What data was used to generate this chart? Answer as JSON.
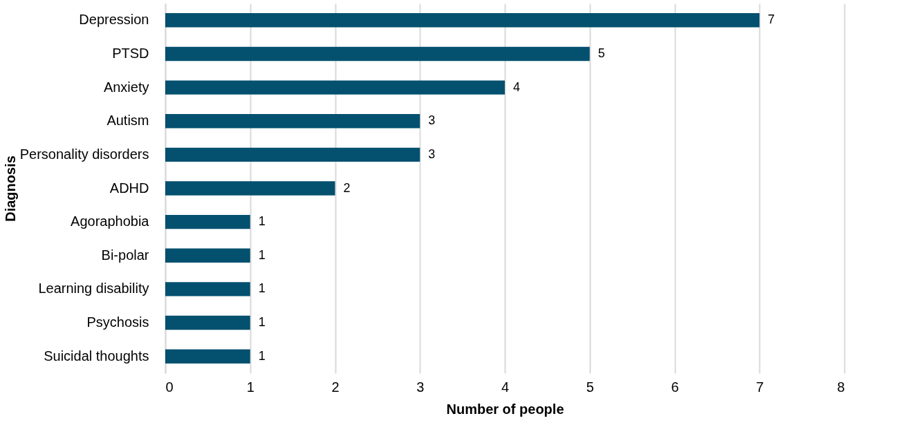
{
  "chart_data": {
    "type": "bar",
    "orientation": "horizontal",
    "xlabel": "Number of people",
    "ylabel": "Diagnosis",
    "categories": [
      "Depression",
      "PTSD",
      "Anxiety",
      "Autism",
      "Personality disorders",
      "ADHD",
      "Agoraphobia",
      "Bi-polar",
      "Learning disability",
      "Psychosis",
      "Suicidal thoughts"
    ],
    "values": [
      7,
      5,
      4,
      3,
      3,
      2,
      1,
      1,
      1,
      1,
      1
    ],
    "color": "#03506f",
    "xlim": [
      0,
      8
    ],
    "xticks": [
      0,
      1,
      2,
      3,
      4,
      5,
      6,
      7,
      8
    ],
    "grid": "x",
    "data_labels": true
  }
}
